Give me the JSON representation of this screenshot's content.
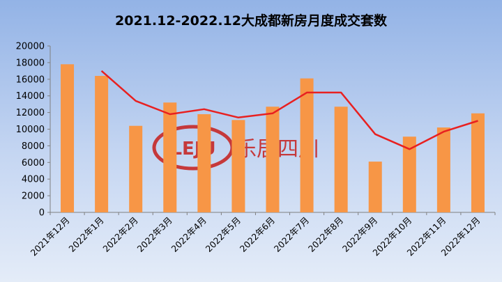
{
  "chart_data": {
    "type": "bar",
    "title": "2021.12-2022.12大成都新房月度成交套数",
    "categories": [
      "2021年12月",
      "2022年1月",
      "2022年2月",
      "2022年3月",
      "2022年4月",
      "2022年5月",
      "2022年6月",
      "2022年7月",
      "2022年8月",
      "2022年9月",
      "2022年10月",
      "2022年11月",
      "2022年12月"
    ],
    "series": [
      {
        "type": "bar",
        "values": [
          17800,
          16400,
          10400,
          13200,
          11800,
          11100,
          12700,
          16100,
          12700,
          6100,
          9100,
          10200,
          11900
        ]
      },
      {
        "type": "line",
        "values": [
          null,
          17000,
          13400,
          11800,
          12400,
          11400,
          11900,
          14400,
          14400,
          9400,
          7600,
          9700,
          11000
        ]
      }
    ],
    "yticks": [
      0,
      2000,
      4000,
      6000,
      8000,
      10000,
      12000,
      14000,
      16000,
      18000,
      20000
    ],
    "ylim": [
      0,
      20000
    ],
    "grid": false,
    "legend": "none",
    "colors": {
      "bar": "#f79646",
      "line": "#e82020",
      "axis": "#7f7f7f"
    }
  },
  "watermark": {
    "logo": "LEJU",
    "text": "乐居四川"
  }
}
